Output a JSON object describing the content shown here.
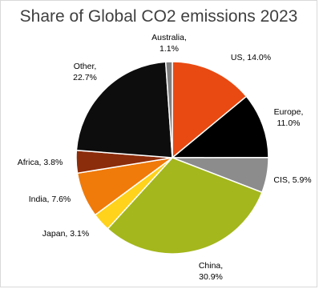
{
  "chart_data": {
    "type": "pie",
    "title": "Share of Global CO2 emissions 2023",
    "unit": "%",
    "slices": [
      {
        "label": "US",
        "value": 14.0,
        "color": "#e84a12",
        "text": [
          "US, 14.0%"
        ]
      },
      {
        "label": "Europe",
        "value": 11.0,
        "color": "#000000",
        "text": [
          "Europe,",
          "11.0%"
        ]
      },
      {
        "label": "CIS",
        "value": 5.9,
        "color": "#8c8c8c",
        "text": [
          "CIS, 5.9%"
        ]
      },
      {
        "label": "China",
        "value": 30.9,
        "color": "#a4b71c",
        "text": [
          "China,",
          "30.9%"
        ]
      },
      {
        "label": "Japan",
        "value": 3.1,
        "color": "#ffd21c",
        "text": [
          "Japan, 3.1%"
        ]
      },
      {
        "label": "India",
        "value": 7.6,
        "color": "#f07a0a",
        "text": [
          "India, 7.6%"
        ]
      },
      {
        "label": "Africa",
        "value": 3.8,
        "color": "#8b2c0a",
        "text": [
          "Africa, 3.8%"
        ]
      },
      {
        "label": "Other",
        "value": 22.7,
        "color": "#0d0d0d",
        "text": [
          "Other,",
          "22.7%"
        ]
      },
      {
        "label": "Australia",
        "value": 1.1,
        "color": "#7f7f7f",
        "text": [
          "Australia,",
          "1.1%"
        ]
      }
    ],
    "start_angle": 0,
    "direction": "clockwise",
    "legend": "none"
  }
}
